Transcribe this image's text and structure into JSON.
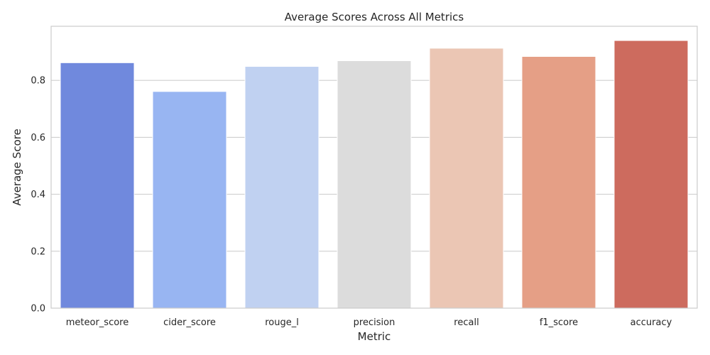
{
  "chart_data": {
    "type": "bar",
    "title": "Average Scores Across All Metrics",
    "xlabel": "Metric",
    "ylabel": "Average Score",
    "categories": [
      "meteor_score",
      "cider_score",
      "rouge_l",
      "precision",
      "recall",
      "f1_score",
      "accuracy"
    ],
    "values": [
      0.862,
      0.761,
      0.849,
      0.869,
      0.913,
      0.884,
      0.94
    ],
    "colors": [
      "#7089dd",
      "#98b5f2",
      "#c0d1f1",
      "#dcdcdc",
      "#ebc6b4",
      "#e59f86",
      "#cd6b5e"
    ],
    "ylim": [
      0,
      0.99
    ],
    "yticks": [
      0.0,
      0.2,
      0.4,
      0.6,
      0.8
    ],
    "ytick_labels": [
      "0.0",
      "0.2",
      "0.4",
      "0.6",
      "0.8"
    ],
    "grid": "y",
    "legend": "none"
  }
}
